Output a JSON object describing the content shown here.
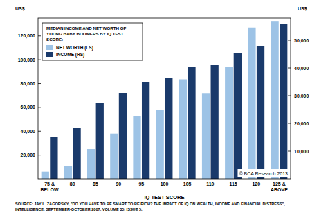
{
  "chart_data": {
    "type": "bar",
    "title": "MEDIAN INCOME AND NET WORTH OF YOUNG BABY BOOMERS BY IQ TEST SCORE:",
    "x_label": "IQ TEST SCORE",
    "y_label": "US$",
    "y2_label": "US$",
    "annotations": [
      "SOURCE: JAY L. ZAGORSKY, \"DO YOU HAVE TO BE SMART TO BE RICH? THE IMPACT OF IQ ON WEALTH, INCOME AND FINANCIAL DISTRESS\", INTELLIGENCE, SEPTEMBER-OCTOBER 2007, VOLUME 35, ISSUE 5.",
      "© BCA Research 2013"
    ],
    "categories": [
      "75 & BELOW",
      "80",
      "85",
      "90",
      "95",
      "100",
      "105",
      "110",
      "115",
      "120",
      "125 & ABOVE"
    ],
    "series": [
      {
        "name": "NET WORTH (LS)",
        "color": "#9dc3e6",
        "values": [
          6000,
          11000,
          25000,
          38000,
          52500,
          58000,
          83500,
          72000,
          94000,
          127000,
          132000
        ]
      },
      {
        "name": "INCOME (RS)",
        "color": "#1a3a6b",
        "axis": "y2",
        "values": [
          15000,
          18500,
          27500,
          31000,
          35000,
          36500,
          40500,
          41000,
          45500,
          48000,
          56000
        ]
      }
    ],
    "ylim": [
      0,
      135000
    ],
    "yticks": [
      {
        "value": 20000,
        "label": "20,000"
      },
      {
        "value": 40000,
        "label": "40,000"
      },
      {
        "value": 60000,
        "label": "60,000"
      },
      {
        "value": 80000,
        "label": "80,000"
      },
      {
        "value": 100000,
        "label": "100,000"
      },
      {
        "value": 120000,
        "label": "120,000"
      }
    ],
    "y2lim": [
      0,
      58000
    ],
    "y2ticks": [
      {
        "value": 10000,
        "label": "10,000"
      },
      {
        "value": 20000,
        "label": "20,000"
      },
      {
        "value": 30000,
        "label": "30,000"
      },
      {
        "value": 40000,
        "label": "40,000"
      },
      {
        "value": 50000,
        "label": "50,000"
      }
    ],
    "grid": false,
    "legend": "upper left"
  }
}
